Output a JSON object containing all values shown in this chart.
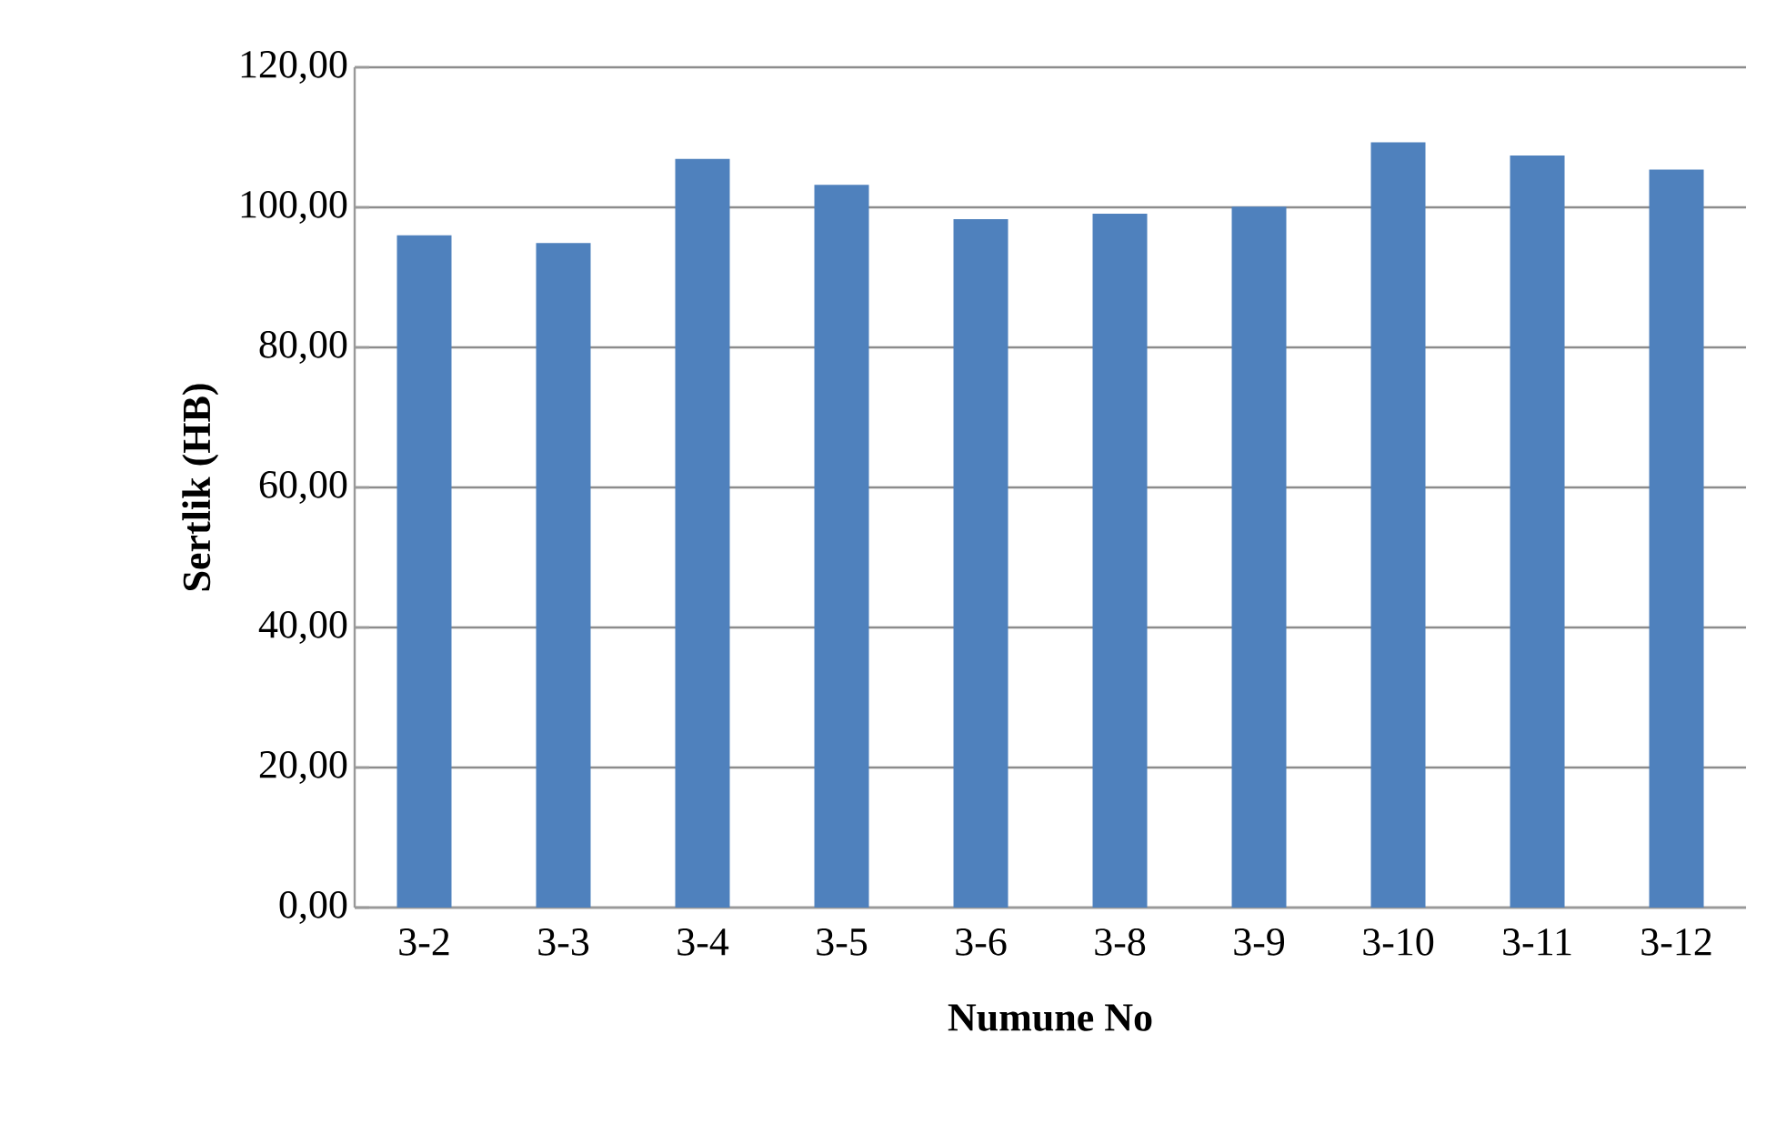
{
  "chart_data": {
    "type": "bar",
    "xlabel": "Numune No",
    "ylabel": "Sertlik  (HB)",
    "categories": [
      "3-2",
      "3-3",
      "3-4",
      "3-5",
      "3-6",
      "3-8",
      "3-9",
      "3-10",
      "3-11",
      "3-12"
    ],
    "values": [
      96.0,
      94.9,
      106.9,
      103.2,
      98.3,
      99.1,
      100.1,
      109.3,
      107.4,
      105.4
    ],
    "color": "#4f81bd",
    "ylim": [
      0,
      120
    ],
    "yticks": [
      {
        "value": 0,
        "label": "0,00"
      },
      {
        "value": 20,
        "label": "20,00"
      },
      {
        "value": 40,
        "label": "40,00"
      },
      {
        "value": 60,
        "label": "60,00"
      },
      {
        "value": 80,
        "label": "80,00"
      },
      {
        "value": 100,
        "label": "100,00"
      },
      {
        "value": 120,
        "label": "120,00"
      }
    ],
    "grid": "y"
  }
}
